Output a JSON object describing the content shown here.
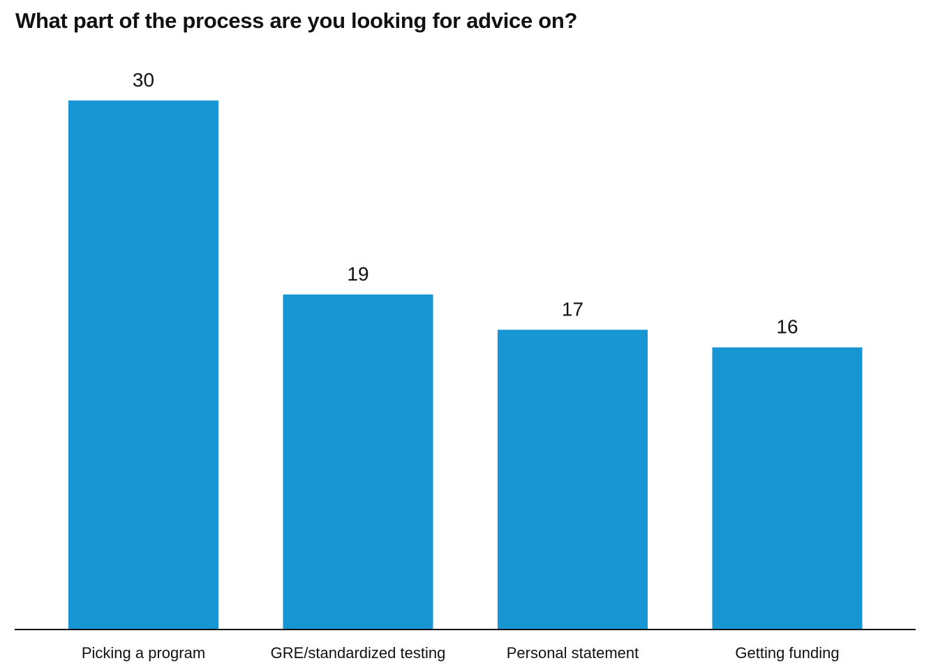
{
  "chart_data": {
    "type": "bar",
    "title": "What part of the process are you looking for advice on?",
    "categories": [
      "Picking a program",
      "GRE/standardized testing",
      "Personal statement",
      "Getting funding"
    ],
    "values": [
      30,
      19,
      17,
      16
    ],
    "value_labels": [
      "30",
      "19",
      "17",
      "16"
    ],
    "xlabel": "",
    "ylabel": "",
    "ylim": [
      0,
      30
    ],
    "grid": false,
    "legend": "none",
    "bar_color": "#1896d3",
    "axis_color": "#111111"
  }
}
